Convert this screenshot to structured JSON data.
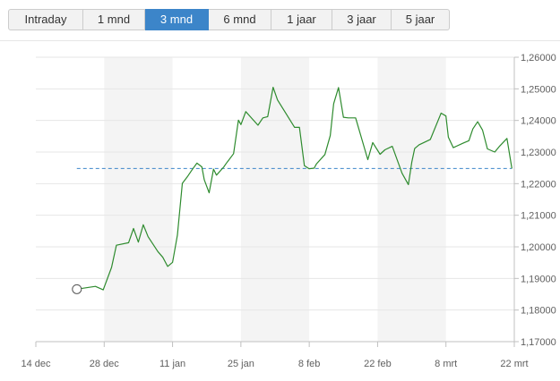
{
  "tabs": [
    {
      "label": "Intraday",
      "active": false
    },
    {
      "label": "1 mnd",
      "active": false
    },
    {
      "label": "3 mnd",
      "active": true
    },
    {
      "label": "6 mnd",
      "active": false
    },
    {
      "label": "1 jaar",
      "active": false
    },
    {
      "label": "3 jaar",
      "active": false
    },
    {
      "label": "5 jaar",
      "active": false
    }
  ],
  "colors": {
    "line": "#2e8b2e",
    "reference_line": "#3c85c9",
    "band": "#f4f4f4",
    "grid": "#e6e6e6",
    "active_tab": "#3c85c9"
  },
  "chart_data": {
    "type": "line",
    "x_tick_labels": [
      "14 dec",
      "28 dec",
      "11 jan",
      "25 jan",
      "8 feb",
      "22 feb",
      "8 mrt",
      "22 mrt"
    ],
    "x_ticks": [
      0,
      14,
      28,
      42,
      56,
      70,
      84,
      98
    ],
    "y_tick_labels": [
      "1,26000",
      "1,25000",
      "1,24000",
      "1,23000",
      "1,22000",
      "1,21000",
      "1,20000",
      "1,19000",
      "1,18000",
      "1,17000"
    ],
    "ylim": [
      1.17,
      1.26
    ],
    "y_axis_position": "right",
    "x_unit": "days since 14 dec",
    "alternating_bands": true,
    "reference_value": 1.2248,
    "series": [
      {
        "x": [
          8.4,
          12.2,
          13.8,
          15.5,
          16.5,
          19.0,
          20.0,
          21.0,
          22.0,
          23.0,
          25.0,
          26.0,
          27.0,
          28.0,
          29.0,
          30.0,
          31.0,
          32.0,
          33.0,
          34.0,
          34.5,
          35.5,
          36.4,
          37.0,
          38.5,
          39.0,
          40.5,
          41.5,
          42.0,
          43.0,
          45.5,
          46.5,
          47.5,
          48.6,
          49.5,
          53.0,
          54.0,
          55.0,
          56.0,
          57.0,
          57.5,
          59.2,
          60.3,
          61.0,
          62.0,
          63.0,
          64.0,
          65.5,
          68.0,
          69.0,
          70.5,
          71.5,
          73.0,
          75.0,
          76.3,
          77.0,
          77.6,
          78.5,
          80.8,
          83.0,
          84.0,
          84.5,
          85.5,
          87.5,
          88.7,
          89.5,
          90.5,
          91.5,
          92.5,
          94.0,
          95.0,
          96.5,
          97.5
        ],
        "y": [
          1.1866,
          1.1875,
          1.1864,
          1.1935,
          1.2005,
          1.2013,
          1.2058,
          1.2015,
          1.207,
          1.2032,
          1.1985,
          1.1967,
          1.1938,
          1.1951,
          1.2037,
          1.2201,
          1.2221,
          1.2244,
          1.2265,
          1.2253,
          1.2212,
          1.2171,
          1.2246,
          1.2227,
          1.2253,
          1.2264,
          1.2295,
          1.2401,
          1.2387,
          1.2428,
          1.2385,
          1.2408,
          1.2412,
          1.2505,
          1.2465,
          1.2378,
          1.2378,
          1.2257,
          1.2247,
          1.2249,
          1.2263,
          1.2292,
          1.2352,
          1.2453,
          1.2504,
          1.241,
          1.2408,
          1.2408,
          1.2276,
          1.233,
          1.2293,
          1.2307,
          1.2318,
          1.2233,
          1.2197,
          1.2268,
          1.2311,
          1.2323,
          1.234,
          1.2423,
          1.2414,
          1.2347,
          1.2314,
          1.2328,
          1.2336,
          1.2373,
          1.2396,
          1.2369,
          1.231,
          1.23,
          1.2319,
          1.2343,
          1.2248
        ]
      }
    ]
  }
}
